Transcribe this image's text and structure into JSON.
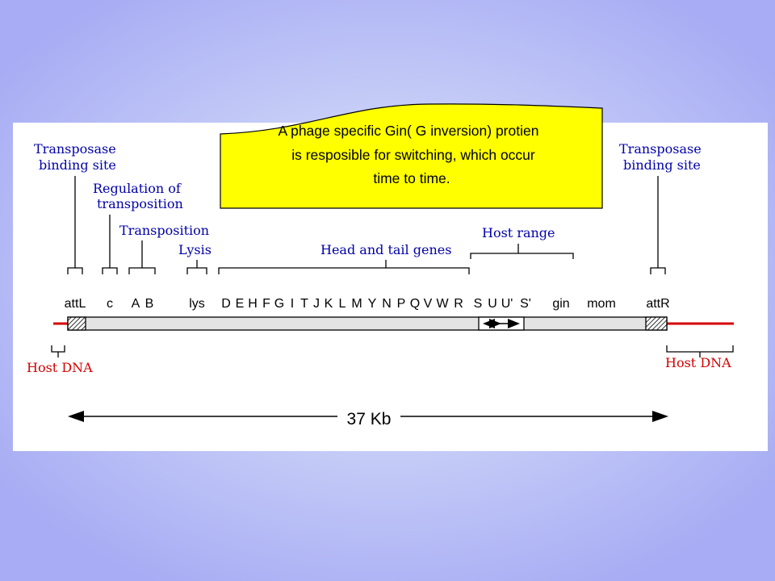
{
  "callout": {
    "text_lines": [
      "A phage specific Gin( G inversion) protien",
      "is resposible for switching, which occur",
      "time to time."
    ]
  },
  "labels": {
    "transposase_left": [
      "Transposase",
      "binding site"
    ],
    "transposase_right": [
      "Transposase",
      "binding site"
    ],
    "regulation": [
      "Regulation of",
      "transposition"
    ],
    "transposition": "Transposition",
    "lysis": "Lysis",
    "head_tail": "Head and tail genes",
    "host_range": "Host range",
    "host_dna_left": "Host DNA",
    "host_dna_right": "Host DNA",
    "length": "37 Kb"
  },
  "genes": [
    "attL",
    "c",
    "A",
    "B",
    "lys",
    "D",
    "E",
    "H",
    "F",
    "G",
    "I",
    "T",
    "J",
    "K",
    "L",
    "M",
    "Y",
    "N",
    "P",
    "Q",
    "V",
    "W",
    "R",
    "S",
    "U",
    "U'",
    "S'",
    "gin",
    "mom",
    "attR"
  ],
  "colors": {
    "label_blue": "#0000aa",
    "host_red": "#d40000",
    "callout_fill": "#ffff00",
    "genome_fill": "#e4e4e4",
    "panel_fill": "#ffffff"
  }
}
